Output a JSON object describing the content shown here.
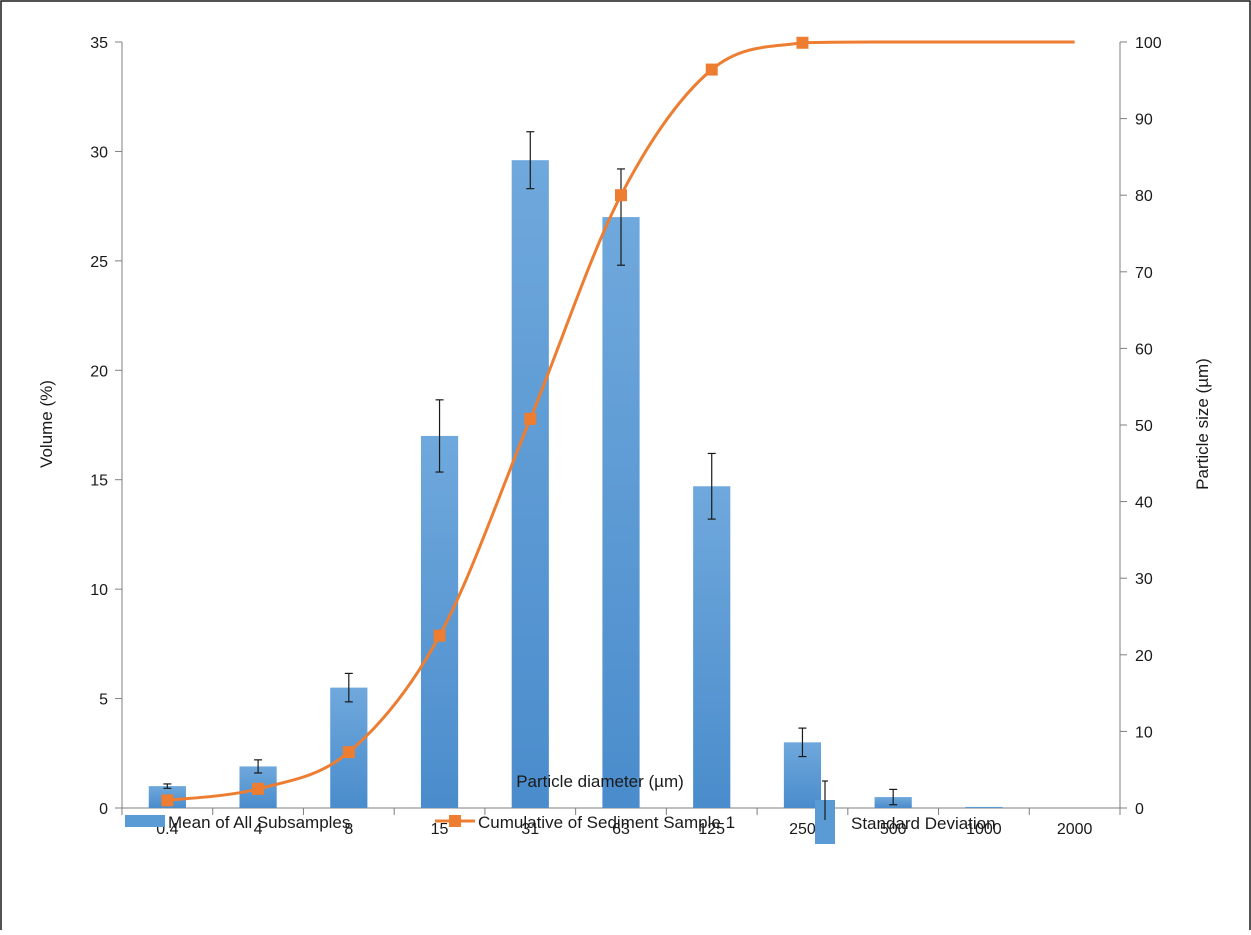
{
  "chart_data": {
    "type": "bar",
    "categories": [
      "0.4",
      "4",
      "8",
      "15",
      "31",
      "63",
      "125",
      "250",
      "500",
      "1000",
      "2000"
    ],
    "xlabel": "Particle diameter (µm)",
    "ylabel": "Volume (%)",
    "y2label": "Particle size (µm)",
    "ylim": [
      0,
      35
    ],
    "yticks": [
      0,
      5,
      10,
      15,
      20,
      25,
      30,
      35
    ],
    "y2lim": [
      0,
      100
    ],
    "y2ticks": [
      0,
      10,
      20,
      30,
      40,
      50,
      60,
      70,
      80,
      90,
      100
    ],
    "grid": false,
    "legend_position": "bottom",
    "series": [
      {
        "name": "Mean of All Subsamples",
        "type": "bar",
        "axis": "left",
        "values": [
          1.0,
          1.9,
          5.5,
          17.0,
          29.6,
          27.0,
          14.7,
          3.0,
          0.5,
          0.05,
          0
        ],
        "error": [
          0.1,
          0.3,
          0.65,
          1.65,
          1.3,
          2.2,
          1.5,
          0.65,
          0.35,
          0,
          0
        ],
        "color": "#5b9bd5"
      },
      {
        "name": "Cumulative of Sediment Sample 1",
        "type": "line",
        "axis": "right",
        "values": [
          1,
          2.5,
          7.3,
          22.5,
          50.8,
          80,
          96.4,
          99.9,
          100,
          100,
          100
        ],
        "markers": [
          true,
          true,
          true,
          true,
          true,
          true,
          true,
          true,
          false,
          false,
          false
        ],
        "color": "#ed7d31"
      }
    ],
    "legend_extra": "Standard Deviation"
  }
}
